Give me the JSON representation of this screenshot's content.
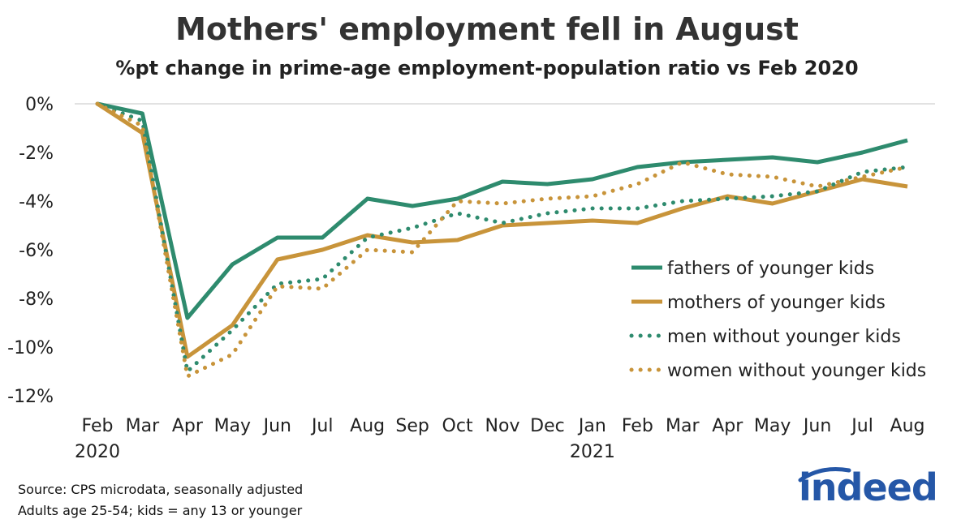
{
  "header": {
    "title": "Mothers' employment fell in August",
    "subtitle": "%pt change in prime-age employment-population ratio vs Feb 2020"
  },
  "footnotes": {
    "source": "Source: CPS microdata, seasonally adjusted",
    "note": "Adults age 25-54; kids = any 13 or younger"
  },
  "logo": {
    "text": "indeed",
    "color": "#2557a7"
  },
  "chart_data": {
    "type": "line",
    "title": "Mothers' employment fell in August",
    "subtitle": "%pt change in prime-age employment-population ratio vs Feb 2020",
    "xlabel": "",
    "ylabel": "",
    "ylim": [
      -12,
      0
    ],
    "yticks": [
      0,
      -2,
      -4,
      -6,
      -8,
      -10,
      -12
    ],
    "ytick_labels": [
      "0%",
      "-2%",
      "-4%",
      "-6%",
      "-8%",
      "-10%",
      "-12%"
    ],
    "categories": [
      "Feb",
      "Mar",
      "Apr",
      "May",
      "Jun",
      "Jul",
      "Aug",
      "Sep",
      "Oct",
      "Nov",
      "Dec",
      "Jan",
      "Feb",
      "Mar",
      "Apr",
      "May",
      "Jun",
      "Jul",
      "Aug"
    ],
    "year_labels": [
      "2020",
      "",
      "",
      "",
      "",
      "",
      "",
      "",
      "",
      "",
      "",
      "2021",
      "",
      "",
      "",
      "",
      "",
      "",
      ""
    ],
    "grid": false,
    "legend_position": "right",
    "series": [
      {
        "name": "fathers of younger kids",
        "color": "#2e8b6e",
        "style": "solid",
        "values": [
          0,
          -0.4,
          -8.8,
          -6.6,
          -5.5,
          -5.5,
          -3.9,
          -4.2,
          -3.9,
          -3.2,
          -3.3,
          -3.1,
          -2.6,
          -2.4,
          -2.3,
          -2.2,
          -2.4,
          -2.0,
          -1.5
        ]
      },
      {
        "name": "mothers of younger kids",
        "color": "#c8943a",
        "style": "solid",
        "values": [
          0,
          -1.2,
          -10.4,
          -9.1,
          -6.4,
          -6.0,
          -5.4,
          -5.7,
          -5.6,
          -5.0,
          -4.9,
          -4.8,
          -4.9,
          -4.3,
          -3.8,
          -4.1,
          -3.6,
          -3.1,
          -3.4
        ]
      },
      {
        "name": "men without younger kids",
        "color": "#2e8b6e",
        "style": "dotted",
        "values": [
          0,
          -0.7,
          -11.0,
          -9.3,
          -7.4,
          -7.2,
          -5.5,
          -5.1,
          -4.5,
          -4.9,
          -4.5,
          -4.3,
          -4.3,
          -4.0,
          -3.9,
          -3.8,
          -3.6,
          -2.8,
          -2.6
        ]
      },
      {
        "name": "women without younger kids",
        "color": "#c8943a",
        "style": "dotted",
        "values": [
          0,
          -0.9,
          -11.2,
          -10.3,
          -7.5,
          -7.6,
          -6.0,
          -6.1,
          -4.0,
          -4.1,
          -3.9,
          -3.8,
          -3.3,
          -2.4,
          -2.9,
          -3.0,
          -3.4,
          -3.0,
          -2.6
        ]
      }
    ]
  }
}
